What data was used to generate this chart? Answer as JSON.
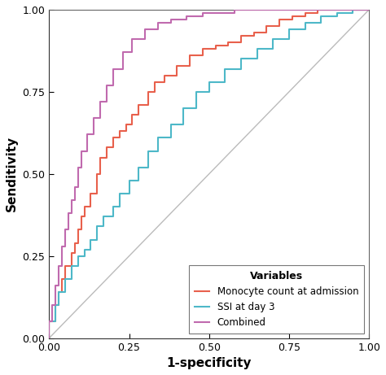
{
  "title": "",
  "xlabel": "1-specificity",
  "ylabel": "Senditivity",
  "xlim": [
    0.0,
    1.0
  ],
  "ylim": [
    0.0,
    1.0
  ],
  "xticks": [
    0.0,
    0.25,
    0.5,
    0.75,
    1.0
  ],
  "yticks": [
    0.0,
    0.25,
    0.5,
    0.75,
    1.0
  ],
  "diagonal_color": "#bbbbbb",
  "legend_title": "Variables",
  "legend_labels": [
    "Monocyte count at admission",
    "SSI at day 3",
    "Combined"
  ],
  "legend_colors": [
    "#e8604c",
    "#4db8c8",
    "#c06aae"
  ],
  "curve_linewidth": 1.5,
  "background_color": "#ffffff",
  "mono_fpr": [
    0.0,
    0.0,
    0.02,
    0.02,
    0.03,
    0.03,
    0.04,
    0.04,
    0.05,
    0.05,
    0.07,
    0.07,
    0.08,
    0.08,
    0.09,
    0.09,
    0.1,
    0.1,
    0.11,
    0.11,
    0.13,
    0.13,
    0.15,
    0.15,
    0.16,
    0.16,
    0.18,
    0.18,
    0.2,
    0.2,
    0.22,
    0.22,
    0.24,
    0.24,
    0.26,
    0.26,
    0.28,
    0.28,
    0.31,
    0.31,
    0.33,
    0.33,
    0.36,
    0.36,
    0.4,
    0.4,
    0.44,
    0.44,
    0.48,
    0.48,
    0.52,
    0.52,
    0.56,
    0.56,
    0.6,
    0.6,
    0.64,
    0.64,
    0.68,
    0.68,
    0.72,
    0.72,
    0.76,
    0.76,
    0.8,
    0.8,
    0.84,
    0.84,
    0.88,
    0.88,
    0.92,
    0.92,
    0.96,
    0.96,
    1.0
  ],
  "mono_tpr": [
    0.0,
    0.05,
    0.05,
    0.1,
    0.1,
    0.14,
    0.14,
    0.18,
    0.18,
    0.22,
    0.22,
    0.26,
    0.26,
    0.29,
    0.29,
    0.33,
    0.33,
    0.37,
    0.37,
    0.4,
    0.4,
    0.44,
    0.44,
    0.5,
    0.5,
    0.55,
    0.55,
    0.58,
    0.58,
    0.61,
    0.61,
    0.63,
    0.63,
    0.65,
    0.65,
    0.68,
    0.68,
    0.71,
    0.71,
    0.75,
    0.75,
    0.78,
    0.78,
    0.8,
    0.8,
    0.83,
    0.83,
    0.86,
    0.86,
    0.88,
    0.88,
    0.89,
    0.89,
    0.9,
    0.9,
    0.92,
    0.92,
    0.93,
    0.93,
    0.95,
    0.95,
    0.97,
    0.97,
    0.98,
    0.98,
    0.99,
    0.99,
    1.0,
    1.0,
    1.0,
    1.0,
    1.0,
    1.0,
    1.0,
    1.0
  ],
  "ssi_fpr": [
    0.0,
    0.0,
    0.02,
    0.02,
    0.03,
    0.03,
    0.05,
    0.05,
    0.07,
    0.07,
    0.09,
    0.09,
    0.11,
    0.11,
    0.13,
    0.13,
    0.15,
    0.15,
    0.17,
    0.17,
    0.2,
    0.2,
    0.22,
    0.22,
    0.25,
    0.25,
    0.28,
    0.28,
    0.31,
    0.31,
    0.34,
    0.34,
    0.38,
    0.38,
    0.42,
    0.42,
    0.46,
    0.46,
    0.5,
    0.5,
    0.55,
    0.55,
    0.6,
    0.6,
    0.65,
    0.65,
    0.7,
    0.7,
    0.75,
    0.75,
    0.8,
    0.8,
    0.85,
    0.85,
    0.9,
    0.9,
    0.95,
    0.95,
    1.0
  ],
  "ssi_tpr": [
    0.0,
    0.05,
    0.05,
    0.1,
    0.1,
    0.14,
    0.14,
    0.18,
    0.18,
    0.22,
    0.22,
    0.25,
    0.25,
    0.27,
    0.27,
    0.3,
    0.3,
    0.34,
    0.34,
    0.37,
    0.37,
    0.4,
    0.4,
    0.44,
    0.44,
    0.48,
    0.48,
    0.52,
    0.52,
    0.57,
    0.57,
    0.61,
    0.61,
    0.65,
    0.65,
    0.7,
    0.7,
    0.75,
    0.75,
    0.78,
    0.78,
    0.82,
    0.82,
    0.85,
    0.85,
    0.88,
    0.88,
    0.91,
    0.91,
    0.94,
    0.94,
    0.96,
    0.96,
    0.98,
    0.98,
    0.99,
    0.99,
    1.0,
    1.0
  ],
  "comb_fpr": [
    0.0,
    0.0,
    0.01,
    0.01,
    0.02,
    0.02,
    0.03,
    0.03,
    0.04,
    0.04,
    0.05,
    0.05,
    0.06,
    0.06,
    0.07,
    0.07,
    0.08,
    0.08,
    0.09,
    0.09,
    0.1,
    0.1,
    0.12,
    0.12,
    0.14,
    0.14,
    0.16,
    0.16,
    0.18,
    0.18,
    0.2,
    0.2,
    0.23,
    0.23,
    0.26,
    0.26,
    0.3,
    0.3,
    0.34,
    0.34,
    0.38,
    0.38,
    0.43,
    0.43,
    0.48,
    0.48,
    0.53,
    0.53,
    0.58,
    0.58,
    0.63,
    0.63,
    0.68,
    0.68,
    0.73,
    0.73,
    0.78,
    0.78,
    0.83,
    0.83,
    0.88,
    0.88,
    0.93,
    0.93,
    1.0
  ],
  "comb_tpr": [
    0.0,
    0.05,
    0.05,
    0.1,
    0.1,
    0.16,
    0.16,
    0.22,
    0.22,
    0.28,
    0.28,
    0.33,
    0.33,
    0.38,
    0.38,
    0.42,
    0.42,
    0.46,
    0.46,
    0.52,
    0.52,
    0.57,
    0.57,
    0.62,
    0.62,
    0.67,
    0.67,
    0.72,
    0.72,
    0.77,
    0.77,
    0.82,
    0.82,
    0.87,
    0.87,
    0.91,
    0.91,
    0.94,
    0.94,
    0.96,
    0.96,
    0.97,
    0.97,
    0.98,
    0.98,
    0.99,
    0.99,
    0.99,
    0.99,
    1.0,
    1.0,
    1.0,
    1.0,
    1.0,
    1.0,
    1.0,
    1.0,
    1.0,
    1.0,
    1.0,
    1.0,
    1.0,
    1.0,
    1.0,
    1.0
  ]
}
